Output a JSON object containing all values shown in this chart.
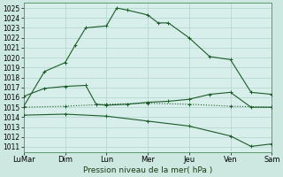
{
  "background_color": "#cce8e0",
  "plot_bg_color": "#d8eeea",
  "grid_color": "#b0d4cc",
  "line_color": "#1a5c28",
  "title": "Pression niveau de la mer( hPa )",
  "x_labels": [
    "LuMar",
    "Dim",
    "Lun",
    "Mer",
    "Jeu",
    "Ven",
    "Sam"
  ],
  "x_positions": [
    0,
    2,
    4,
    6,
    8,
    10,
    12
  ],
  "ylim": [
    1010.5,
    1025.5
  ],
  "yticks": [
    1011,
    1012,
    1013,
    1014,
    1015,
    1016,
    1017,
    1018,
    1019,
    1020,
    1021,
    1022,
    1023,
    1024,
    1025
  ],
  "xlim": [
    0,
    12
  ],
  "series1_x": [
    0,
    1,
    2,
    2.5,
    3,
    4,
    4.5,
    5,
    6,
    6.5,
    7,
    8,
    9,
    10,
    11,
    12
  ],
  "series1_y": [
    1015.1,
    1018.6,
    1019.5,
    1021.3,
    1023.0,
    1023.2,
    1025.0,
    1024.8,
    1024.3,
    1023.5,
    1023.5,
    1022.0,
    1020.1,
    1019.8,
    1016.5,
    1016.3
  ],
  "series2_x": [
    0,
    1,
    2,
    3,
    3.5,
    4,
    5,
    6,
    7,
    8,
    9,
    10,
    11,
    12
  ],
  "series2_y": [
    1016.1,
    1016.9,
    1017.1,
    1017.2,
    1015.3,
    1015.2,
    1015.3,
    1015.5,
    1015.6,
    1015.8,
    1016.3,
    1016.5,
    1015.0,
    1015.0
  ],
  "series3_x": [
    0,
    2,
    4,
    6,
    8,
    10,
    12
  ],
  "series3_y": [
    1015.0,
    1015.1,
    1015.3,
    1015.4,
    1015.3,
    1015.1,
    1015.0
  ],
  "series4_x": [
    0,
    2,
    4,
    6,
    8,
    10,
    11,
    12
  ],
  "series4_y": [
    1014.2,
    1014.3,
    1014.1,
    1013.6,
    1013.1,
    1012.1,
    1011.05,
    1011.3
  ],
  "ylabel_fontsize": 5.5,
  "xlabel_fontsize": 6.0,
  "title_fontsize": 6.5
}
